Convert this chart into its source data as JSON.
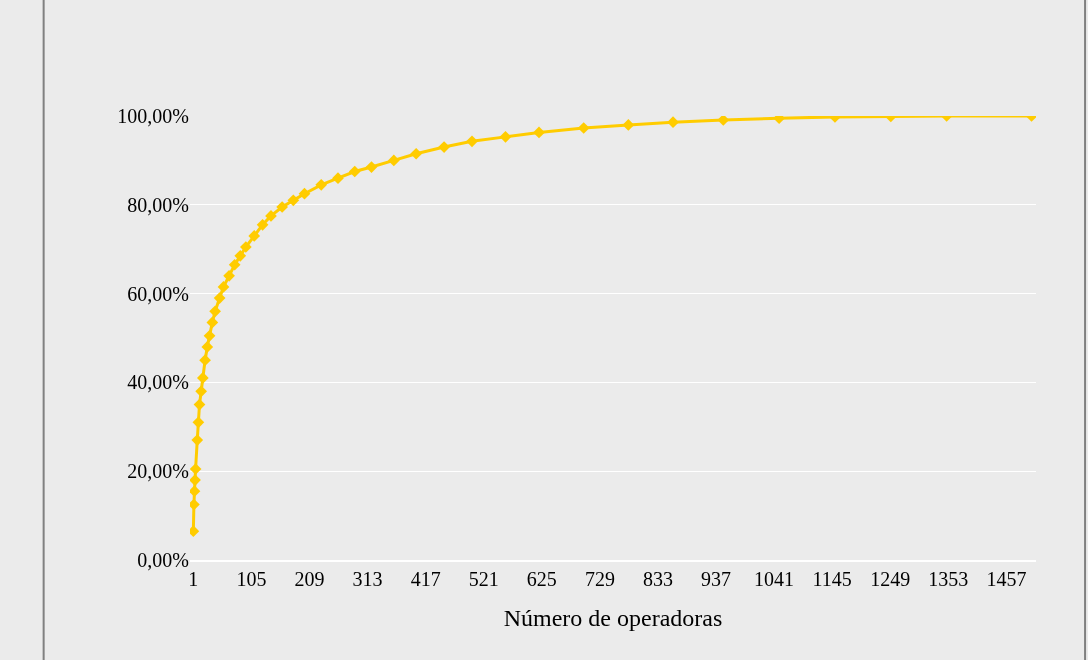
{
  "chart_data": {
    "type": "line",
    "xlabel": "Número de operadoras",
    "x": [
      1,
      2,
      3,
      4,
      5,
      8,
      10,
      12,
      15,
      18,
      22,
      26,
      30,
      35,
      40,
      48,
      55,
      65,
      75,
      85,
      95,
      110,
      125,
      140,
      160,
      180,
      200,
      230,
      260,
      290,
      320,
      360,
      400,
      450,
      500,
      560,
      620,
      700,
      780,
      860,
      950,
      1050,
      1150,
      1250,
      1350,
      1502
    ],
    "series": [
      {
        "color": "#ffcc00",
        "values": [
          6.5,
          12.5,
          15.5,
          18,
          20.5,
          27,
          31,
          35,
          38,
          41,
          45,
          48,
          50.5,
          53.5,
          56,
          59,
          61.5,
          64,
          66.5,
          68.5,
          70.5,
          73,
          75.5,
          77.5,
          79.5,
          81,
          82.5,
          84.5,
          86,
          87.5,
          88.5,
          90,
          91.5,
          93,
          94.3,
          95.3,
          96.3,
          97.3,
          98,
          98.6,
          99.1,
          99.5,
          99.8,
          99.9,
          100,
          100
        ]
      }
    ],
    "xlim": [
      -5,
      1510
    ],
    "xticks": [
      1,
      105,
      209,
      313,
      417,
      521,
      625,
      729,
      833,
      937,
      1041,
      1145,
      1249,
      1353,
      1457
    ],
    "ylim": [
      0,
      100
    ],
    "yticks": [
      {
        "value": 0,
        "label": "0,00%"
      },
      {
        "value": 20,
        "label": "20,00%"
      },
      {
        "value": 40,
        "label": "40,00%"
      },
      {
        "value": 60,
        "label": "60,00%"
      },
      {
        "value": 80,
        "label": "80,00%"
      },
      {
        "value": 100,
        "label": "100,00%"
      }
    ],
    "grid": "y",
    "legend": false,
    "marker": "diamond",
    "line_style": "solid"
  }
}
